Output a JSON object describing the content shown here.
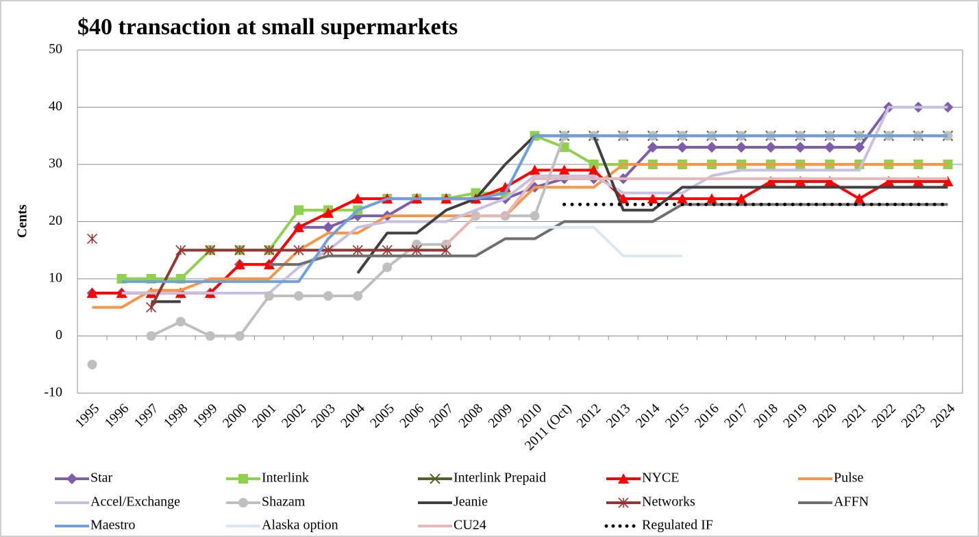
{
  "chart_data": {
    "type": "line",
    "title": "$40 transaction at small supermarkets",
    "y_label": "Cents",
    "categories": [
      "1995",
      "1996",
      "1997",
      "1998",
      "1999",
      "2000",
      "2001",
      "2002",
      "2003",
      "2004",
      "2005",
      "2006",
      "2007",
      "2008",
      "2009",
      "2010",
      "2011 (Oct)",
      "2012",
      "2013",
      "2014",
      "2015",
      "2016",
      "2017",
      "2018",
      "2019",
      "2020",
      "2021",
      "2022",
      "2023",
      "2024"
    ],
    "ylim": [
      -10,
      50
    ],
    "yticks": [
      -10,
      0,
      10,
      20,
      30,
      40,
      50
    ],
    "grid": true,
    "series": [
      {
        "name": "Star",
        "color": "#7e5ea8",
        "marker": "diamond",
        "values": [
          7.5,
          7.5,
          7.5,
          7.5,
          7.5,
          12.5,
          12.5,
          19,
          19,
          21,
          21,
          24,
          24,
          24,
          24,
          26,
          27.5,
          27.5,
          27.5,
          33,
          33,
          33,
          33,
          33,
          33,
          33,
          33,
          40,
          40,
          40
        ]
      },
      {
        "name": "Interlink",
        "color": "#8fd14f",
        "marker": "square",
        "values": [
          null,
          10,
          10,
          10,
          15,
          15,
          15,
          22,
          22,
          22,
          24,
          24,
          24,
          25,
          25,
          35,
          33,
          30,
          30,
          30,
          30,
          30,
          30,
          30,
          30,
          30,
          30,
          30,
          30,
          30
        ]
      },
      {
        "name": "Interlink Prepaid",
        "color": "#4f6228",
        "marker": "x",
        "values": [
          null,
          null,
          null,
          null,
          null,
          null,
          null,
          null,
          null,
          null,
          null,
          null,
          null,
          null,
          null,
          null,
          35,
          35,
          35,
          35,
          35,
          35,
          35,
          35,
          35,
          35,
          35,
          35,
          35,
          35
        ]
      },
      {
        "name": "NYCE",
        "color": "#ff0000",
        "marker": "triangle",
        "values": [
          7.5,
          7.5,
          7.5,
          7.5,
          7.5,
          12.5,
          12.5,
          19,
          21.5,
          24,
          24,
          24,
          24,
          24,
          26,
          29,
          29,
          29,
          24,
          24,
          24,
          24,
          24,
          27,
          27,
          27,
          24,
          27,
          27,
          27
        ]
      },
      {
        "name": "Pulse",
        "color": "#f79646",
        "marker": "none",
        "values": [
          5,
          5,
          8,
          8,
          10,
          10,
          10,
          15,
          18,
          18,
          21,
          21,
          21,
          21,
          21,
          26,
          26,
          26,
          30,
          30,
          30,
          30,
          30,
          30,
          30,
          30,
          30,
          30,
          30,
          30
        ]
      },
      {
        "name": "Accel/Exchange",
        "color": "#c9bfdf",
        "marker": "none",
        "values": [
          null,
          7.5,
          7.5,
          7.5,
          7.5,
          7.5,
          7.5,
          12,
          15,
          19,
          20,
          20,
          20,
          22,
          24,
          28,
          28,
          28,
          25,
          25,
          25,
          28,
          29,
          29,
          29,
          29,
          29,
          40,
          40,
          40
        ]
      },
      {
        "name": "Shazam",
        "color": "#bfbfbf",
        "marker": "circle",
        "values": [
          -5,
          null,
          0,
          2.5,
          0,
          0,
          7,
          7,
          7,
          7,
          12,
          16,
          16,
          21,
          21,
          21,
          35,
          35,
          35,
          35,
          35,
          35,
          35,
          35,
          35,
          35,
          35,
          35,
          35,
          35
        ]
      },
      {
        "name": "Jeanie",
        "color": "#404040",
        "marker": "none",
        "values": [
          null,
          null,
          6,
          6,
          null,
          null,
          null,
          null,
          null,
          11,
          18,
          18,
          22,
          24,
          30,
          35,
          35,
          35,
          22,
          22,
          26,
          26,
          26,
          26,
          26,
          26,
          26,
          26,
          26,
          26
        ]
      },
      {
        "name": "Networks",
        "color": "#943634",
        "marker": "asterisk",
        "values": [
          17,
          null,
          5,
          15,
          15,
          15,
          15,
          15,
          15,
          15,
          15,
          15,
          15,
          null,
          null,
          null,
          null,
          null,
          null,
          null,
          null,
          null,
          null,
          null,
          null,
          null,
          null,
          null,
          null,
          null
        ]
      },
      {
        "name": "AFFN",
        "color": "#6f6f6f",
        "marker": "none",
        "values": [
          null,
          null,
          null,
          null,
          null,
          null,
          12.5,
          12.5,
          14,
          14,
          14,
          14,
          14,
          14,
          17,
          17,
          20,
          20,
          20,
          20,
          23,
          23,
          23,
          23,
          23,
          23,
          23,
          23,
          23,
          23
        ]
      },
      {
        "name": "Maestro",
        "color": "#6fa0dc",
        "marker": "none",
        "values": [
          null,
          9.5,
          9.5,
          9.5,
          9.5,
          9.5,
          9.5,
          9.5,
          17,
          22,
          24,
          24,
          24,
          24,
          25,
          35,
          35,
          35,
          35,
          35,
          35,
          35,
          35,
          35,
          35,
          35,
          35,
          35,
          35,
          35
        ]
      },
      {
        "name": "Alaska option",
        "color": "#dce6f2",
        "marker": "none",
        "values": [
          null,
          null,
          null,
          null,
          null,
          null,
          null,
          null,
          null,
          null,
          null,
          null,
          null,
          19,
          19,
          19,
          19,
          19,
          14,
          14,
          14,
          null,
          null,
          null,
          null,
          null,
          null,
          null,
          null,
          null
        ]
      },
      {
        "name": "CU24",
        "color": "#e6b9b8",
        "marker": "none",
        "values": [
          null,
          null,
          null,
          null,
          null,
          null,
          null,
          null,
          null,
          null,
          null,
          null,
          16,
          21,
          21,
          27.5,
          27.5,
          27.5,
          27.5,
          27.5,
          27.5,
          27.5,
          27.5,
          27.5,
          27.5,
          27.5,
          27.5,
          27.5,
          27.5,
          27.5
        ]
      },
      {
        "name": "Regulated IF",
        "color": "#000000",
        "marker": "none",
        "dash": "dotted",
        "values": [
          null,
          null,
          null,
          null,
          null,
          null,
          null,
          null,
          null,
          null,
          null,
          null,
          null,
          null,
          null,
          null,
          23,
          23,
          23,
          23,
          23,
          23,
          23,
          23,
          23,
          23,
          23,
          23,
          23,
          23
        ]
      }
    ]
  }
}
